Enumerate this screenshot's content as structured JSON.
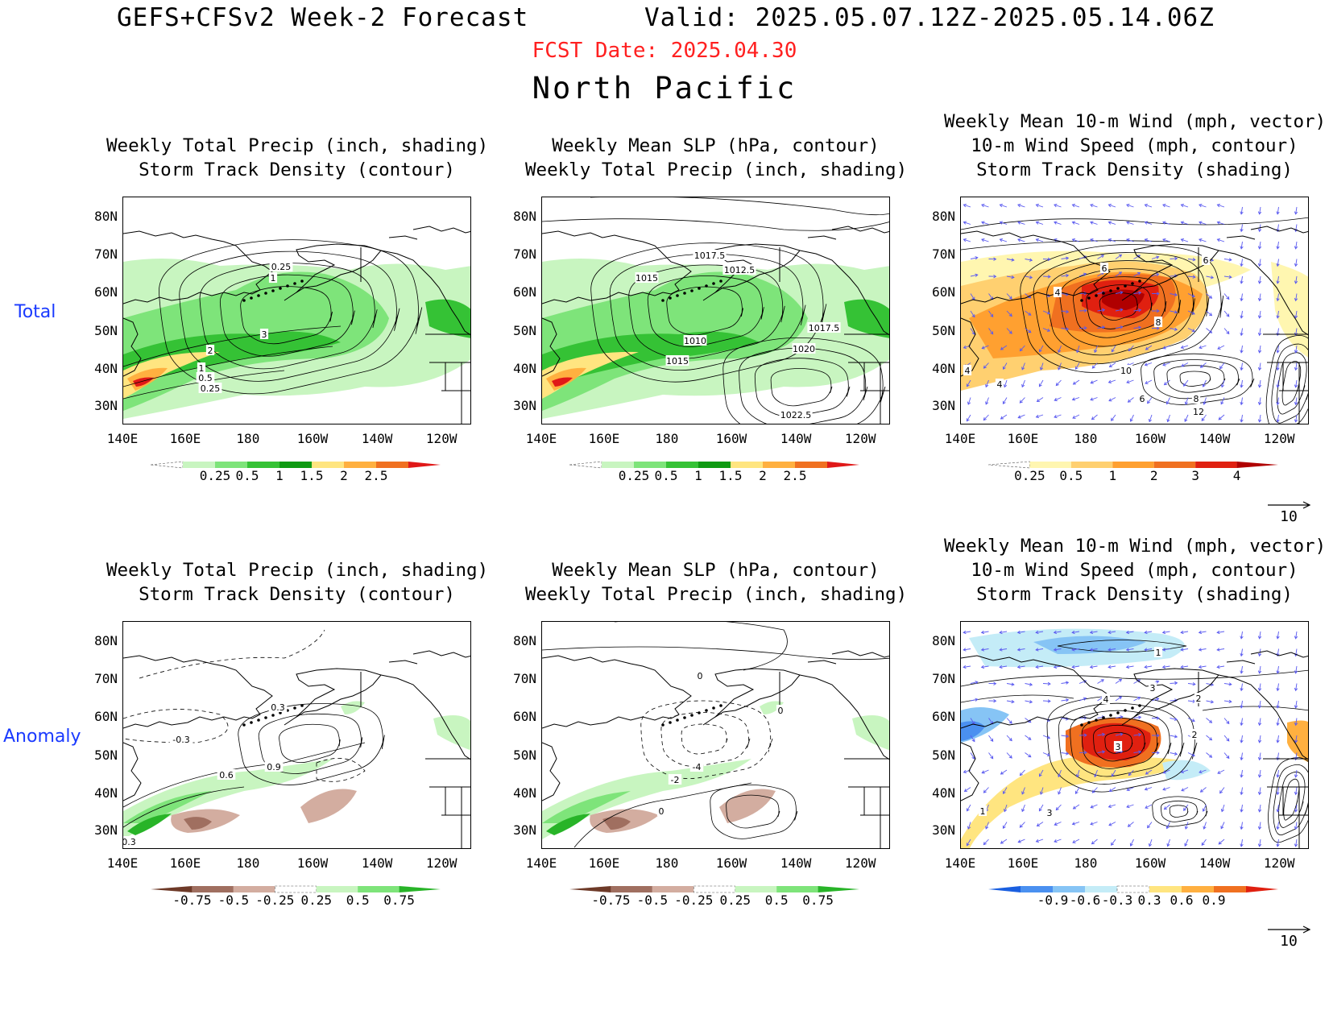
{
  "header": {
    "title_left": "GEFS+CFSv2 Week-2 Forecast",
    "title_right": "Valid: 2025.05.07.12Z-2025.05.14.06Z",
    "fcst_date": "FCST Date: 2025.04.30",
    "region": "North Pacific",
    "fcst_color": "#ff2020",
    "row_label_color": "#1a3aff"
  },
  "rows": [
    {
      "label": "Total"
    },
    {
      "label": "Anomaly"
    }
  ],
  "axes": {
    "lat_labels": [
      "80N",
      "70N",
      "60N",
      "50N",
      "40N",
      "30N"
    ],
    "lon_labels": [
      "140E",
      "160E",
      "180",
      "160W",
      "140W",
      "120W"
    ]
  },
  "panels": [
    {
      "id": "total-precip",
      "title_lines": [
        "Weekly Total Precip (inch, shading)",
        "Storm Track Density (contour)"
      ],
      "colorbar": {
        "labels": [
          "0.25",
          "0.5",
          "1",
          "1.5",
          "2",
          "2.5"
        ],
        "colors": [
          "#ffffff",
          "#c8f5c0",
          "#7ee47a",
          "#35c235",
          "#0e9a12",
          "#ffe580",
          "#ffb040",
          "#f07020",
          "#e01818"
        ]
      },
      "contour_labels": [
        "0.25",
        "1",
        "3",
        "2",
        "1",
        "0.5",
        "0.25"
      ]
    },
    {
      "id": "total-slp",
      "title_lines": [
        "Weekly Mean SLP (hPa, contour)",
        "Weekly Total Precip (inch, shading)"
      ],
      "colorbar": {
        "labels": [
          "0.25",
          "0.5",
          "1",
          "1.5",
          "2",
          "2.5"
        ],
        "colors": [
          "#ffffff",
          "#c8f5c0",
          "#7ee47a",
          "#35c235",
          "#0e9a12",
          "#ffe580",
          "#ffb040",
          "#f07020",
          "#e01818"
        ]
      },
      "contour_labels": [
        "1017.5",
        "1012.5",
        "1015",
        "1010",
        "1015",
        "1020",
        "1017.5",
        "1022.5"
      ]
    },
    {
      "id": "total-wind",
      "title_lines": [
        "Weekly Mean 10-m Wind (mph, vector)",
        "10-m Wind Speed (mph, contour)",
        "Storm Track Density (shading)"
      ],
      "colorbar": {
        "labels": [
          "0.25",
          "0.5",
          "1",
          "2",
          "3",
          "4"
        ],
        "colors": [
          "#ffffff",
          "#fff6b0",
          "#ffd070",
          "#ffa030",
          "#f07020",
          "#e02010",
          "#b00000"
        ]
      },
      "contour_labels": [
        "6",
        "6",
        "4",
        "8",
        "10",
        "4",
        "4",
        "6",
        "8",
        "12"
      ],
      "vector_ref": "10"
    },
    {
      "id": "anom-precip",
      "title_lines": [
        "Weekly Total Precip (inch, shading)",
        "Storm Track Density (contour)"
      ],
      "colorbar": {
        "labels": [
          "-0.75",
          "-0.5",
          "-0.25",
          "0.25",
          "0.5",
          "0.75"
        ],
        "colors": [
          "#6e3a28",
          "#a06f60",
          "#d3ada0",
          "#ffffff",
          "#c8f5c0",
          "#7ee47a",
          "#28b428"
        ]
      },
      "contour_labels": [
        "0.3",
        "-0.3",
        "0.9",
        "0.6",
        "0.3"
      ]
    },
    {
      "id": "anom-slp",
      "title_lines": [
        "Weekly Mean SLP (hPa, contour)",
        "Weekly Total Precip (inch, shading)"
      ],
      "colorbar": {
        "labels": [
          "-0.75",
          "-0.5",
          "-0.25",
          "0.25",
          "0.5",
          "0.75"
        ],
        "colors": [
          "#6e3a28",
          "#a06f60",
          "#d3ada0",
          "#ffffff",
          "#c8f5c0",
          "#7ee47a",
          "#28b428"
        ]
      },
      "contour_labels": [
        "0",
        "-4",
        "-2",
        "0",
        "0"
      ]
    },
    {
      "id": "anom-wind",
      "title_lines": [
        "Weekly Mean 10-m Wind (mph, vector)",
        "10-m Wind Speed (mph, contour)",
        "Storm Track Density (shading)"
      ],
      "colorbar": {
        "labels": [
          "-0.9",
          "-0.6",
          "-0.3",
          "0.3",
          "0.6",
          "0.9"
        ],
        "colors": [
          "#1a5fe0",
          "#4a90f0",
          "#86c4f5",
          "#c4ecf7",
          "#ffffff",
          "#ffe580",
          "#ffb040",
          "#f07020",
          "#e02010"
        ]
      },
      "contour_labels": [
        "1",
        "3",
        "4",
        "2",
        "3",
        "2",
        "1",
        "3"
      ],
      "vector_ref": "10"
    }
  ]
}
